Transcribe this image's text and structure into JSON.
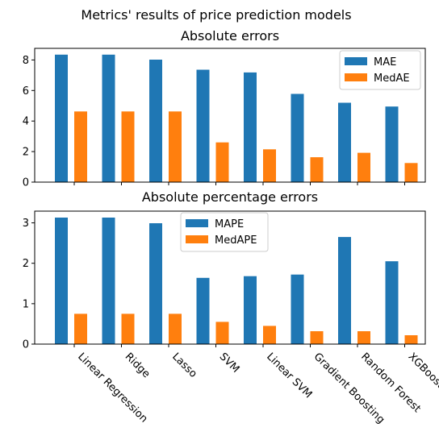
{
  "figure": {
    "title": "Metrics' results of price prediction models"
  },
  "colors": {
    "series1": "#1f77b4",
    "series2": "#ff7f0e"
  },
  "chart_data": [
    {
      "type": "bar",
      "title": "Absolute errors",
      "categories": [
        "Linear Regression",
        "Ridge",
        "Lasso",
        "SVM",
        "Linear SVM",
        "Gradient Boosting",
        "Random Forest",
        "XGBoost"
      ],
      "series": [
        {
          "name": "MAE",
          "values": [
            8.35,
            8.35,
            8.02,
            7.36,
            7.18,
            5.78,
            5.2,
            4.95
          ]
        },
        {
          "name": "MedAE",
          "values": [
            4.63,
            4.63,
            4.63,
            2.6,
            2.15,
            1.63,
            1.92,
            1.25
          ]
        }
      ],
      "ylim": [
        0,
        8.76
      ],
      "yticks": [
        0,
        2,
        4,
        6,
        8
      ],
      "legend": "top-right",
      "show_xtick_labels": false
    },
    {
      "type": "bar",
      "title": "Absolute percentage errors",
      "categories": [
        "Linear Regression",
        "Ridge",
        "Lasso",
        "SVM",
        "Linear SVM",
        "Gradient Boosting",
        "Random Forest",
        "XGBoost"
      ],
      "series": [
        {
          "name": "MAPE",
          "values": [
            3.13,
            3.13,
            2.99,
            1.64,
            1.68,
            1.72,
            2.65,
            2.05
          ]
        },
        {
          "name": "MedAPE",
          "values": [
            0.75,
            0.75,
            0.75,
            0.55,
            0.45,
            0.32,
            0.32,
            0.22
          ]
        }
      ],
      "ylim": [
        0,
        3.29
      ],
      "yticks": [
        0,
        1,
        2,
        3
      ],
      "legend": "top-center",
      "show_xtick_labels": true
    }
  ]
}
